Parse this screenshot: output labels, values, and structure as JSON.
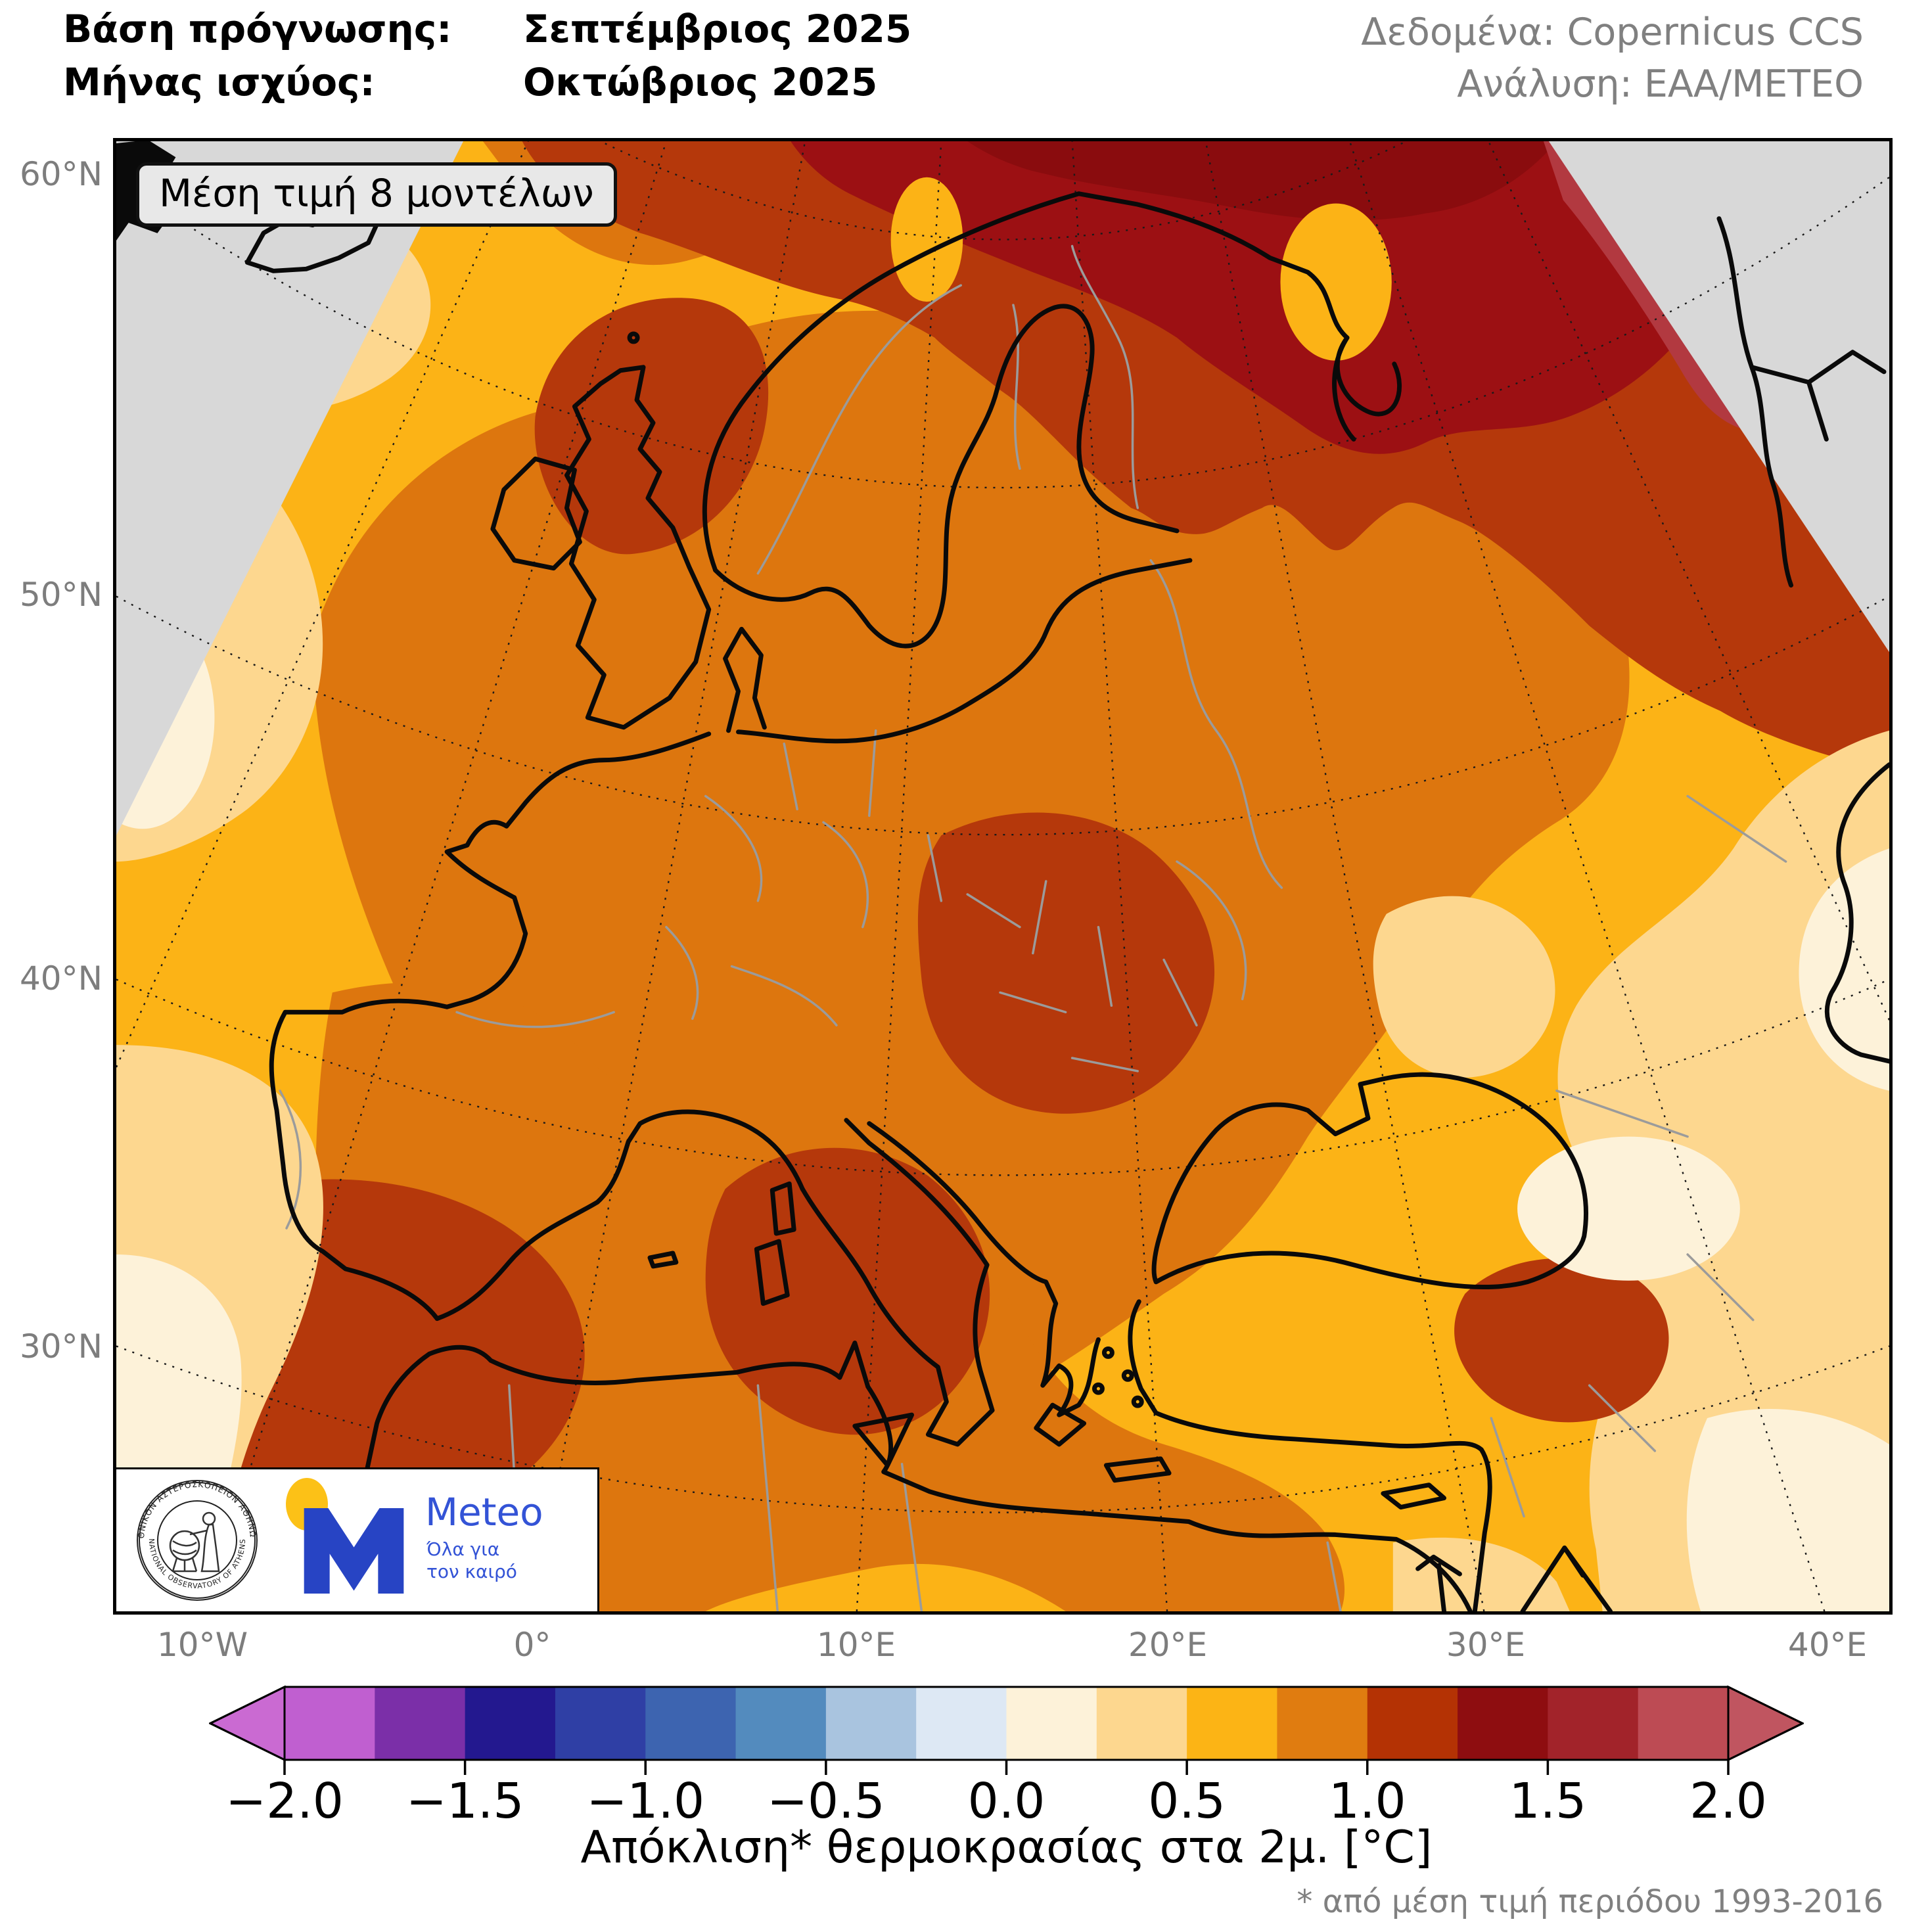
{
  "header": {
    "forecast_base_label": "Βάση πρόγνωσης:",
    "forecast_base_value": "Σεπτέμβριος 2025",
    "valid_month_label": "Μήνας ισχύος:",
    "valid_month_value": "Οκτώβριος 2025",
    "data_source": "Δεδομένα: Copernicus CCS",
    "analysis": "Ανάλυση: ΕΑΑ/ΜΕΤΕΟ"
  },
  "map": {
    "annotation": "Μέση τιμή 8 μοντέλων",
    "lat_labels": [
      "60°N",
      "50°N",
      "40°N",
      "30°N"
    ],
    "lon_labels": [
      "10°W",
      "0°",
      "10°E",
      "20°E",
      "30°E",
      "40°E"
    ],
    "region_palette": {
      "no_data": "#d8d8d8",
      "anom_0.0_0.25": "#fdf2d9",
      "anom_0.25_0.5": "#fdd78f",
      "anom_0.5_0.75": "#fcb316",
      "anom_0.75_1.0": "#dd760e",
      "anom_1.0_1.25": "#b5380b",
      "anom_1.25_1.5": "#9c1013",
      "anom_1.5_1.75": "#8a0c0e",
      "anom_1.75_2.0": "#b23940"
    }
  },
  "colorbar": {
    "title": "Απόκλιση* θερμοκρασίας στα 2μ. [°C]",
    "footnote": "* από μέση τιμή περιόδου 1993-2016",
    "tick_labels": [
      "−2.0",
      "−1.5",
      "−1.0",
      "−0.5",
      "0.0",
      "0.5",
      "1.0",
      "1.5",
      "2.0"
    ],
    "segment_colors": [
      "#c05fd0",
      "#7b2fa8",
      "#23188f",
      "#2f3fa5",
      "#3d64b0",
      "#538bbe",
      "#a9c4df",
      "#dde8f4",
      "#fdf2d9",
      "#fdd78f",
      "#fcb415",
      "#e07c10",
      "#b43204",
      "#8e0d10",
      "#a2232a",
      "#bd4b54"
    ],
    "left_arrow_color": "#ca6ad2",
    "right_arrow_color": "#c05560"
  },
  "logos": {
    "noa_seal_text_top": "ΕΘΝΙΚΟΝ ΑΣΤΕΡΟΣΚΟΠΕΙΟΝ ΑΘΗΝΩΝ",
    "noa_seal_text_bottom": "NATIONAL OBSERVATORY OF ATHENS",
    "meteo_name": "Meteo",
    "meteo_tagline_line1": "Όλα για",
    "meteo_tagline_line2": "τον καιρό"
  }
}
